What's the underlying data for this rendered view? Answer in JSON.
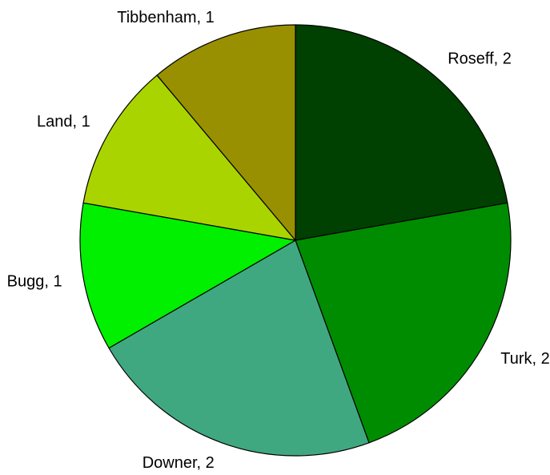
{
  "chart_data": {
    "type": "pie",
    "title": "",
    "slices": [
      {
        "label": "Roseff",
        "value": 2,
        "display": "Roseff, 2",
        "color": "#004000"
      },
      {
        "label": "Turk",
        "value": 2,
        "display": "Turk, 2",
        "color": "#008c00"
      },
      {
        "label": "Downer",
        "value": 2,
        "display": "Downer, 2",
        "color": "#40a880"
      },
      {
        "label": "Bugg",
        "value": 1,
        "display": "Bugg, 1",
        "color": "#00f000"
      },
      {
        "label": "Land",
        "value": 1,
        "display": "Land, 1",
        "color": "#aad400"
      },
      {
        "label": "Tibbenham",
        "value": 1,
        "display": "Tibbenham, 1",
        "color": "#989000"
      }
    ],
    "start_angle": "12 o'clock",
    "direction": "clockwise",
    "legend": "none"
  }
}
